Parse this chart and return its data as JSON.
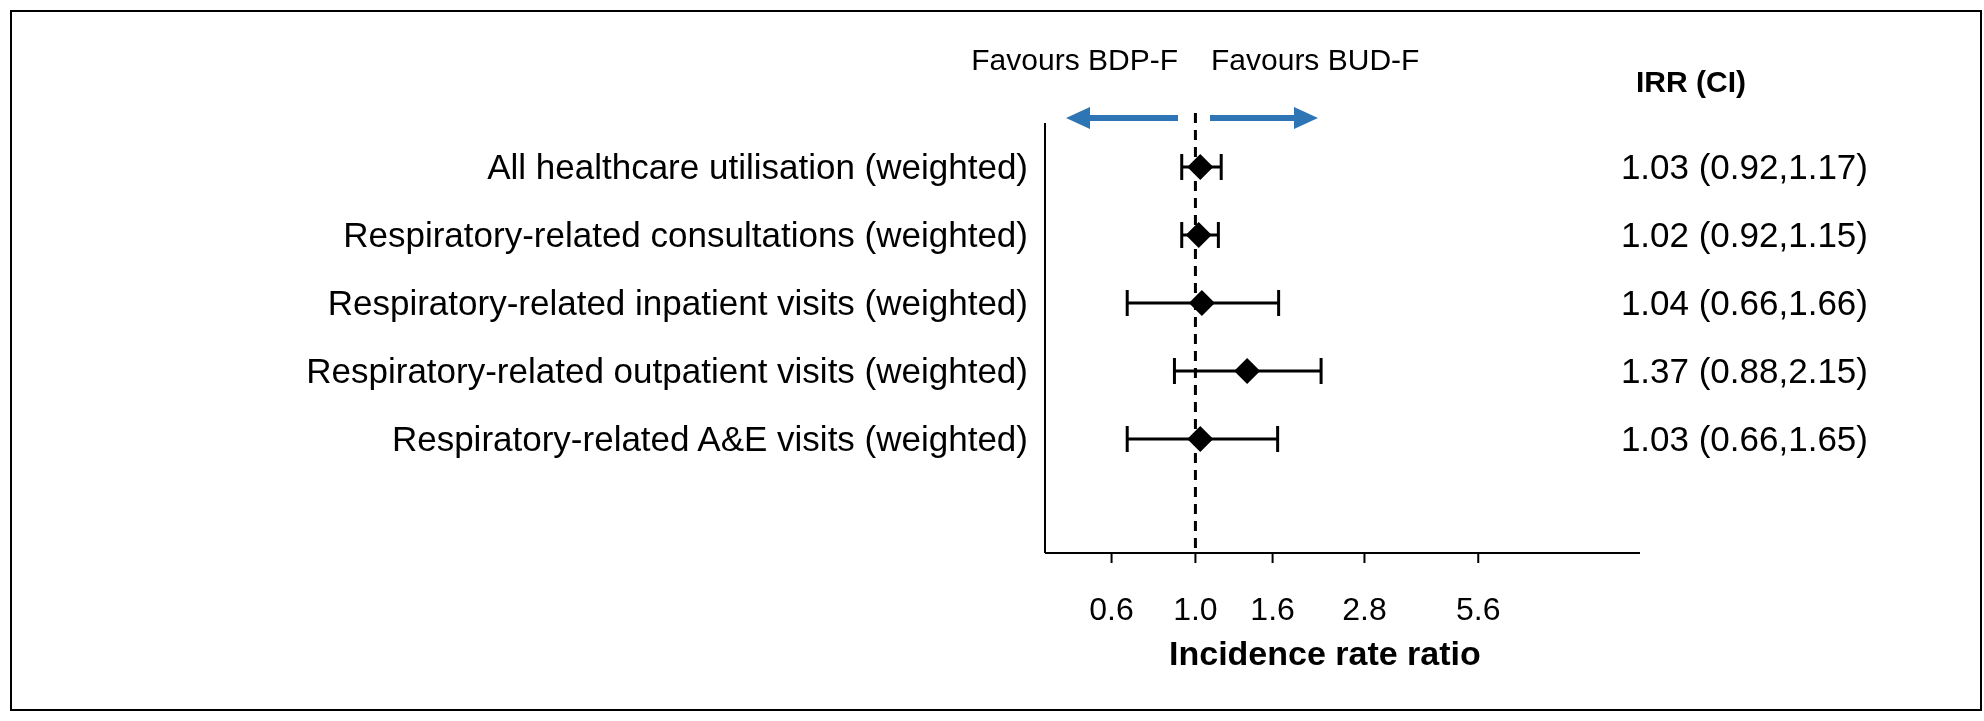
{
  "chart_data": {
    "type": "scatter",
    "orientation": "horizontal",
    "log": "x",
    "marker": "diamond",
    "color": "#000000",
    "categories": [
      "All healthcare utilisation (weighted)",
      "Respiratory-related consultations (weighted)",
      "Respiratory-related inpatient visits (weighted)",
      "Respiratory-related outpatient visits (weighted)",
      "Respiratory-related A&E visits (weighted)"
    ],
    "values": [
      1.03,
      1.02,
      1.04,
      1.37,
      1.03
    ],
    "errors": [
      [
        0.92,
        1.17
      ],
      [
        0.92,
        1.15
      ],
      [
        0.66,
        1.66
      ],
      [
        0.88,
        2.15
      ],
      [
        0.66,
        1.65
      ]
    ],
    "value_labels": [
      "1.03 (0.92,1.17)",
      "1.02 (0.92,1.15)",
      "1.04 (0.66,1.66)",
      "1.37 (0.88,2.15)",
      "1.03 (0.66,1.65)"
    ],
    "xlim": [
      0.4,
      15
    ],
    "xticks": [
      0.6,
      {
        "value": 1,
        "label": "1.0"
      },
      1.6,
      2.8,
      5.6
    ],
    "xlabel": "Incidence rate ratio",
    "ref_lines": [
      {
        "axis": "x",
        "value": 1,
        "line_style": "dashed",
        "color": "#000000"
      }
    ],
    "annotations": [
      "IRR (CI)",
      "Favours BDP-F",
      "Favours BUD-F"
    ]
  }
}
